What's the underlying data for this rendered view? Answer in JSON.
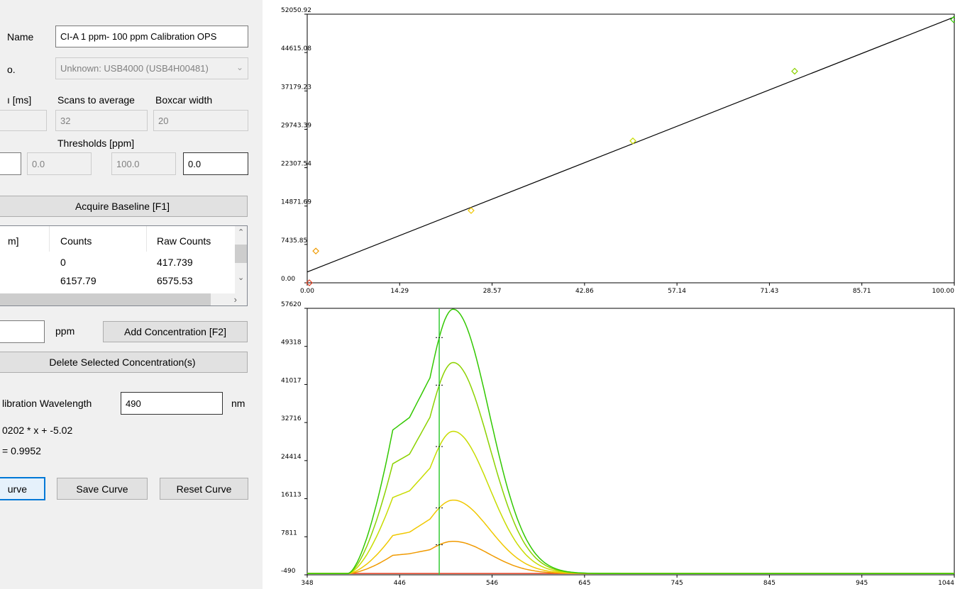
{
  "form": {
    "name_label": "Name",
    "name_value": "CI-A 1 ppm- 100 ppm Calibration OPS",
    "device_label": "o.",
    "device_value": "Unknown: USB4000 (USB4H00481)",
    "integration_label": "ı [ms]",
    "scans_label": "Scans to average",
    "scans_value": "32",
    "boxcar_label": "Boxcar width",
    "boxcar_value": "20",
    "thresholds_label": "Thresholds [ppm]",
    "threshold_low": "0.0",
    "threshold_high": "100.0",
    "threshold_value": "0.0",
    "acquire_baseline_label": "Acquire Baseline [F1]"
  },
  "table": {
    "columns": [
      "m]",
      "Counts",
      "Raw Counts"
    ],
    "rows": [
      {
        "counts": "0",
        "raw": "417.739"
      },
      {
        "counts": "6157.79",
        "raw": "6575.53"
      }
    ]
  },
  "concentration": {
    "unit": "ppm",
    "add_label": "Add Concentration [F2]",
    "delete_label": "Delete Selected Concentration(s)"
  },
  "calibration": {
    "wavelength_label": "libration Wavelength",
    "wavelength_value": "490",
    "wavelength_unit": "nm",
    "equation": "0202 * x + -5.02",
    "r2": "= 0.9952"
  },
  "actions": {
    "curve_label": "urve",
    "save_label": "Save Curve",
    "reset_label": "Reset Curve"
  },
  "chart_data": [
    {
      "type": "scatter",
      "title": "",
      "xlabel": "",
      "ylabel": "",
      "xlim": [
        0,
        100
      ],
      "ylim": [
        0,
        52050.92
      ],
      "x_ticks": [
        "0.00",
        "14.29",
        "28.57",
        "42.86",
        "57.14",
        "71.43",
        "85.71",
        "100.00"
      ],
      "y_ticks": [
        "0.00",
        "7435.85",
        "14871.69",
        "22307.54",
        "29743.39",
        "37179.23",
        "44615.08",
        "52050.92"
      ],
      "points": [
        {
          "x": 0,
          "y": 0,
          "color": "#e03c1e"
        },
        {
          "x": 1,
          "y": 6157.79,
          "color": "#f09a00"
        },
        {
          "x": 25,
          "y": 14000,
          "color": "#f0c800"
        },
        {
          "x": 50,
          "y": 27500,
          "color": "#c8dc00"
        },
        {
          "x": 75,
          "y": 41000,
          "color": "#8cd200"
        },
        {
          "x": 100,
          "y": 51000,
          "color": "#32c800"
        }
      ],
      "fit_line": {
        "x": [
          0,
          100
        ],
        "y": [
          2100,
          51500
        ],
        "color": "#000000"
      }
    },
    {
      "type": "line",
      "title": "",
      "xlabel": "",
      "ylabel": "",
      "xlim": [
        348,
        1044
      ],
      "ylim": [
        -490,
        57620
      ],
      "x_ticks": [
        "348",
        "446",
        "546",
        "645",
        "745",
        "845",
        "945",
        "1044"
      ],
      "y_ticks": [
        "-490",
        "7811",
        "16113",
        "24414",
        "32716",
        "41017",
        "49318",
        "57620"
      ],
      "marker_x": 490,
      "marker_color": "#33cc33",
      "series": [
        {
          "color": "#e03c1e",
          "peak": 0,
          "shoulder": 0
        },
        {
          "color": "#f09a00",
          "peak": 7000,
          "shoulder": 4300
        },
        {
          "color": "#f0c800",
          "peak": 16000,
          "shoulder": 9000
        },
        {
          "color": "#c8dc00",
          "peak": 31000,
          "shoulder": 18000
        },
        {
          "color": "#8cd200",
          "peak": 46000,
          "shoulder": 26000
        },
        {
          "color": "#32c800",
          "peak": 57620,
          "shoulder": 34000
        }
      ]
    }
  ]
}
